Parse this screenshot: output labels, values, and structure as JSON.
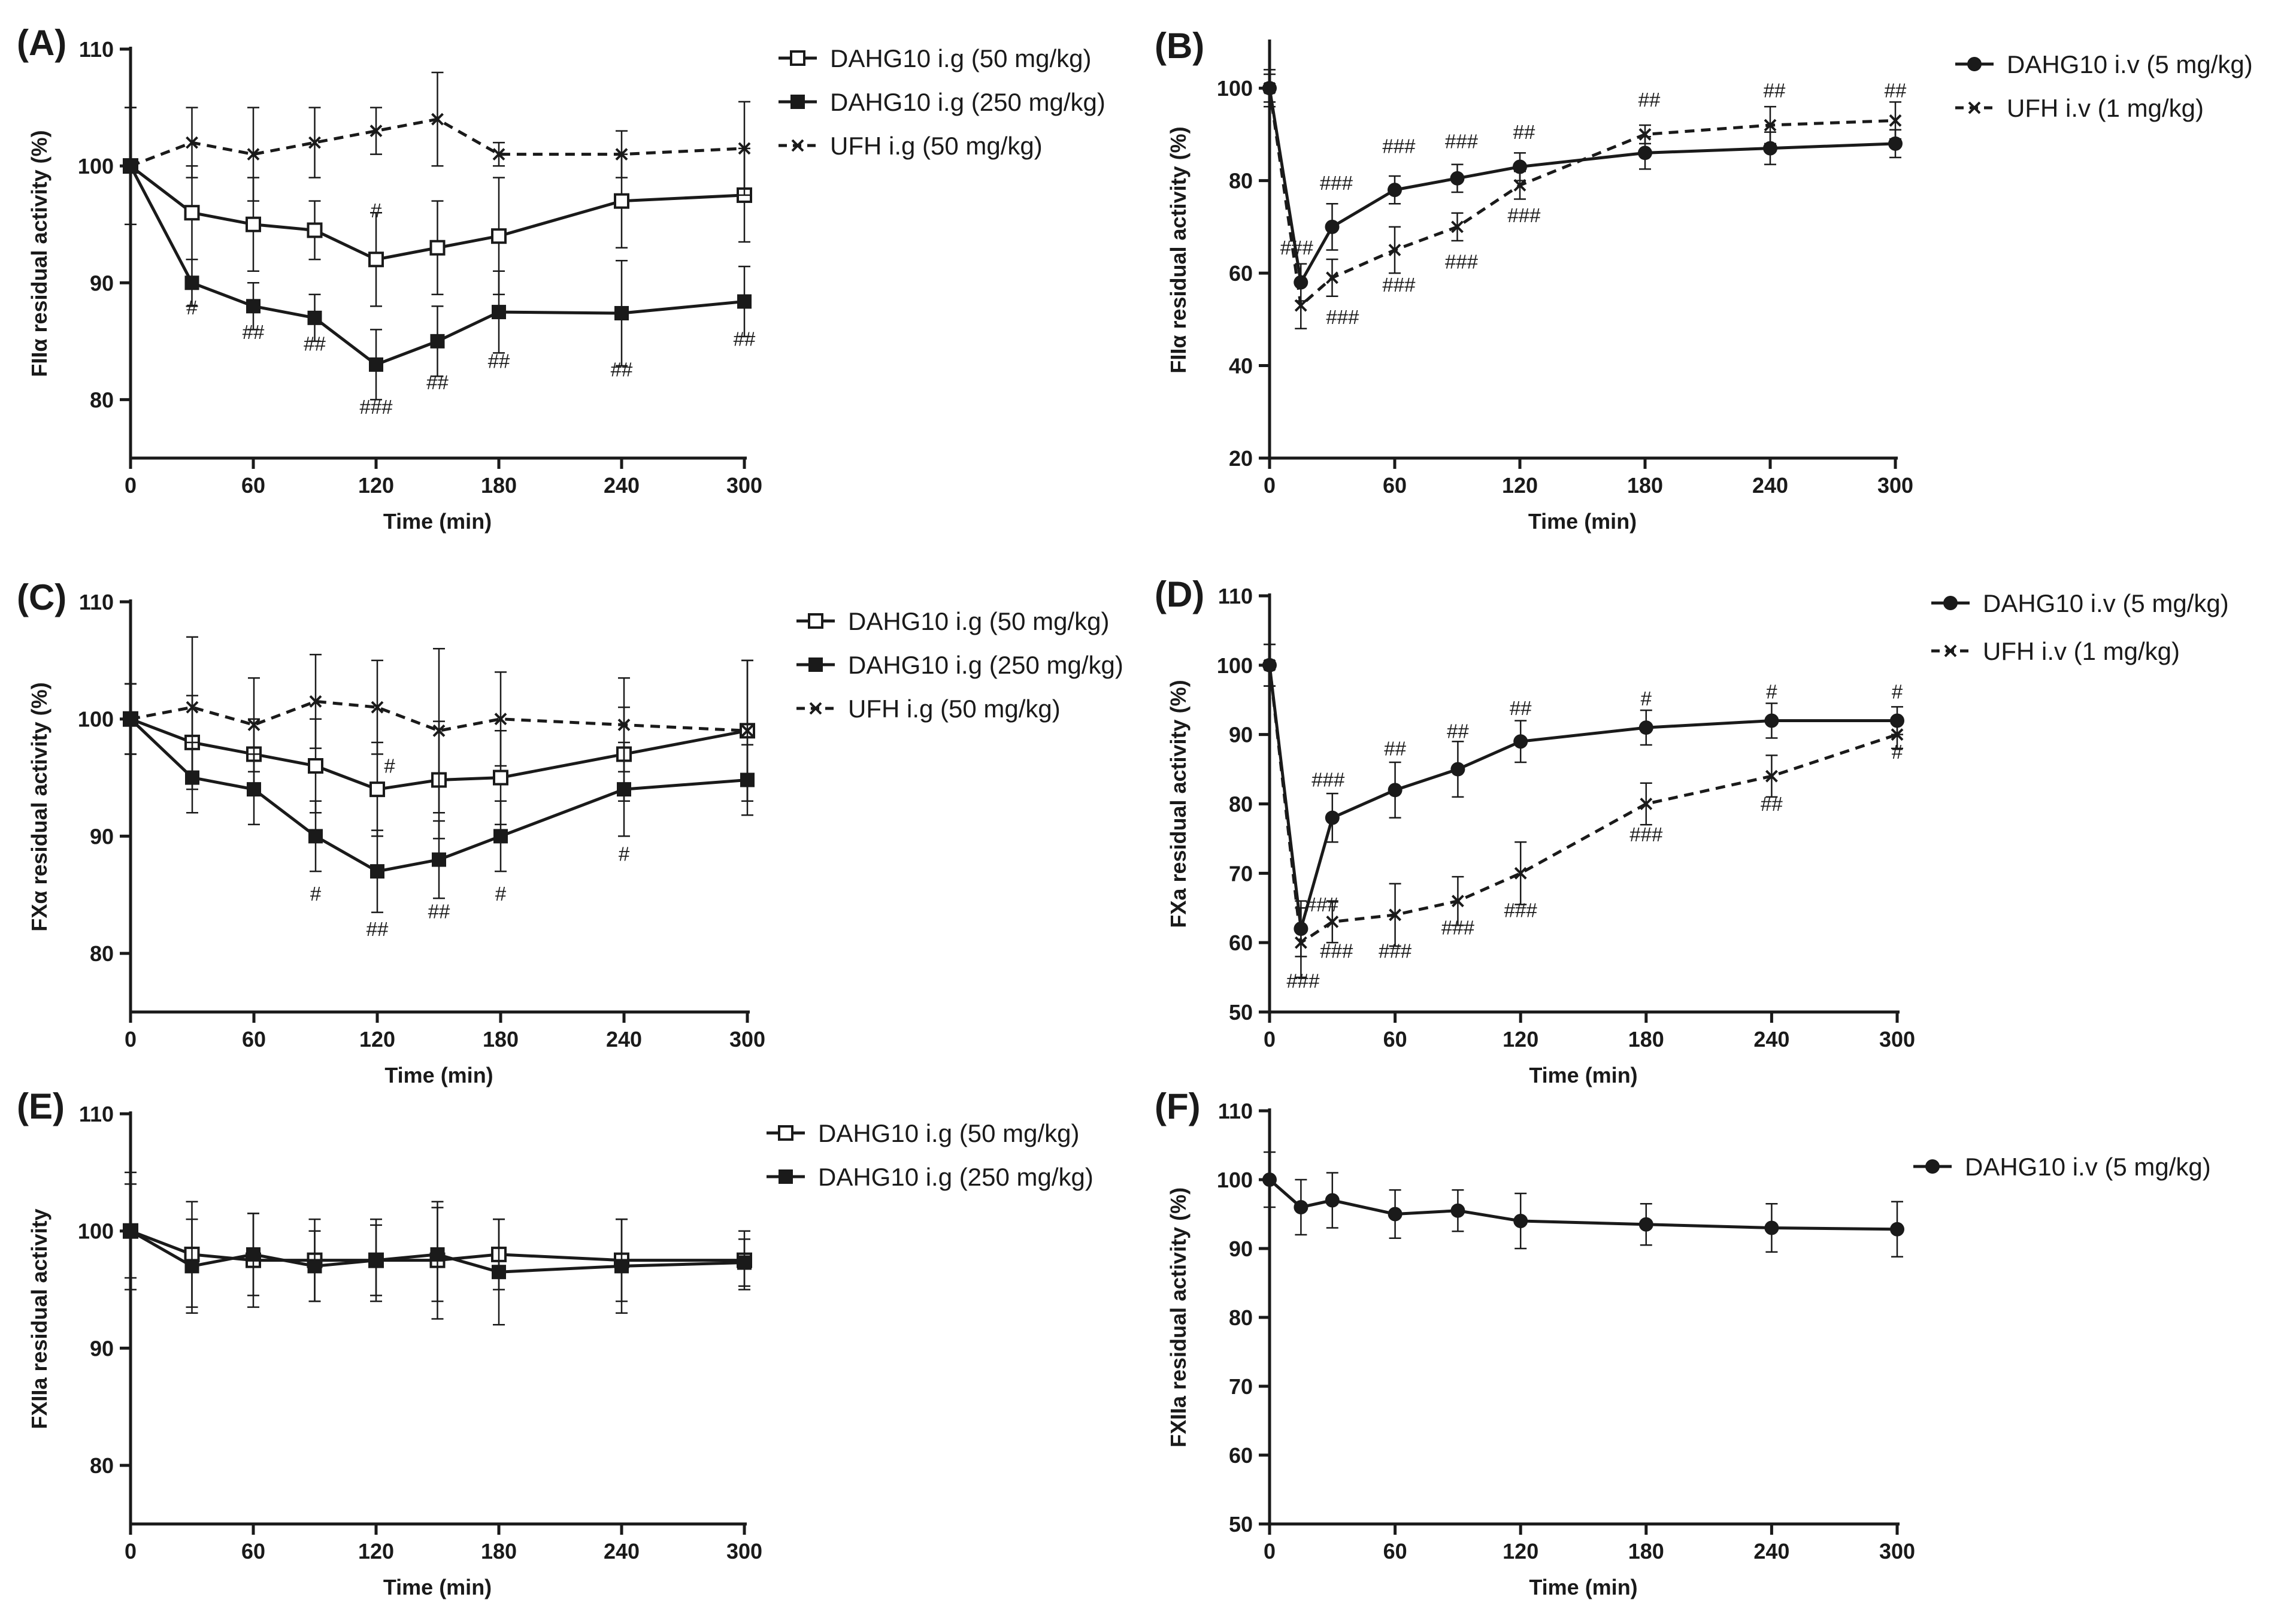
{
  "figure": {
    "panels": [
      "A",
      "B",
      "C",
      "D",
      "E",
      "F"
    ]
  },
  "chart_data": [
    {
      "type": "line",
      "panel_label": "(A)",
      "xlabel": "Time (min)",
      "ylabel": "FIIα residual activity (%)",
      "xlim": [
        0,
        300
      ],
      "ylim": [
        75,
        110
      ],
      "xticks": [
        0,
        60,
        120,
        180,
        240,
        300
      ],
      "yticks": [
        80,
        90,
        100,
        110
      ],
      "grid": false,
      "legend_position": "right",
      "series": [
        {
          "name": "DAHG10 i.g (50 mg/kg)",
          "marker": "open-square",
          "line": "solid",
          "x": [
            0,
            30,
            60,
            90,
            120,
            150,
            180,
            240,
            300
          ],
          "y": [
            100,
            96,
            95,
            94.5,
            92,
            93,
            94,
            97,
            97.5
          ],
          "err": [
            5,
            4,
            4,
            2.5,
            4,
            4,
            5,
            4,
            4
          ]
        },
        {
          "name": "DAHG10 i.g (250 mg/kg)",
          "marker": "filled-square",
          "line": "solid",
          "x": [
            0,
            30,
            60,
            90,
            120,
            150,
            180,
            240,
            300
          ],
          "y": [
            100,
            90,
            88,
            87,
            83,
            85,
            87.5,
            87.4,
            88.4
          ],
          "err": [
            5,
            2,
            2,
            2,
            3,
            3,
            3.5,
            4.5,
            3
          ]
        },
        {
          "name": "UFH i.g (50 mg/kg)",
          "marker": "x",
          "line": "dashed",
          "x": [
            0,
            30,
            60,
            90,
            120,
            150,
            180,
            240,
            300
          ],
          "y": [
            100,
            102,
            101,
            102,
            103,
            104,
            101,
            101,
            101.5
          ],
          "err": [
            5,
            3,
            4,
            3,
            2,
            4,
            1,
            2,
            4
          ]
        }
      ],
      "annotations": [
        {
          "text": "#",
          "x": 30,
          "y": 87.3
        },
        {
          "text": "##",
          "x": 60,
          "y": 85.2
        },
        {
          "text": "##",
          "x": 90,
          "y": 84.2
        },
        {
          "text": "#",
          "x": 120,
          "y": 95.6
        },
        {
          "text": "###",
          "x": 120,
          "y": 78.8
        },
        {
          "text": "##",
          "x": 150,
          "y": 80.9
        },
        {
          "text": "##",
          "x": 180,
          "y": 82.7
        },
        {
          "text": "##",
          "x": 240,
          "y": 82
        },
        {
          "text": "##",
          "x": 300,
          "y": 84.6
        }
      ]
    },
    {
      "type": "line",
      "panel_label": "(B)",
      "xlabel": "Time (min)",
      "ylabel": "FIIα residual activity (%)",
      "xlim": [
        0,
        300
      ],
      "ylim": [
        20,
        110
      ],
      "xticks": [
        0,
        60,
        120,
        180,
        240,
        300
      ],
      "yticks": [
        20,
        40,
        60,
        80,
        100
      ],
      "grid": false,
      "legend_position": "right",
      "series": [
        {
          "name": "DAHG10 i.v (5 mg/kg)",
          "marker": "filled-circle",
          "line": "solid",
          "x": [
            0,
            15,
            30,
            60,
            90,
            120,
            180,
            240,
            300
          ],
          "y": [
            100,
            58,
            70,
            78,
            80.5,
            83,
            86,
            87,
            88
          ],
          "err": [
            3,
            4,
            5,
            3,
            3,
            3,
            3.5,
            3.5,
            3
          ]
        },
        {
          "name": "UFH i.v (1 mg/kg)",
          "marker": "x",
          "line": "dashed",
          "x": [
            0,
            15,
            30,
            60,
            90,
            120,
            180,
            240,
            300
          ],
          "y": [
            100,
            53,
            59,
            65,
            70,
            79,
            90,
            92,
            93
          ],
          "err": [
            4,
            5,
            4,
            5,
            3,
            3,
            2,
            4,
            4
          ]
        }
      ],
      "annotations": [
        {
          "text": "###",
          "x": 13,
          "y": 64
        },
        {
          "text": "###",
          "x": 32,
          "y": 78
        },
        {
          "text": "###",
          "x": 35,
          "y": 49
        },
        {
          "text": "###",
          "x": 62,
          "y": 86
        },
        {
          "text": "###",
          "x": 62,
          "y": 56
        },
        {
          "text": "###",
          "x": 92,
          "y": 87
        },
        {
          "text": "###",
          "x": 92,
          "y": 61
        },
        {
          "text": "##",
          "x": 122,
          "y": 89
        },
        {
          "text": "###",
          "x": 122,
          "y": 71
        },
        {
          "text": "##",
          "x": 182,
          "y": 96
        },
        {
          "text": "##",
          "x": 242,
          "y": 98
        },
        {
          "text": "##",
          "x": 300,
          "y": 98
        }
      ]
    },
    {
      "type": "line",
      "panel_label": "(C)",
      "xlabel": "Time (min)",
      "ylabel": "FXα residual activity (%)",
      "xlim": [
        0,
        300
      ],
      "ylim": [
        75,
        110
      ],
      "xticks": [
        0,
        60,
        120,
        180,
        240,
        300
      ],
      "yticks": [
        80,
        90,
        100,
        110
      ],
      "grid": false,
      "legend_position": "right",
      "series": [
        {
          "name": "DAHG10 i.g (50 mg/kg)",
          "marker": "open-square",
          "line": "solid",
          "x": [
            0,
            30,
            60,
            90,
            120,
            150,
            180,
            240,
            300
          ],
          "y": [
            100,
            98,
            97,
            96,
            94,
            94.8,
            95,
            97,
            99
          ],
          "err": [
            3,
            4,
            3,
            4,
            4,
            5,
            4,
            4,
            6
          ]
        },
        {
          "name": "DAHG10 i.g (250 mg/kg)",
          "marker": "filled-square",
          "line": "solid",
          "x": [
            0,
            30,
            60,
            90,
            120,
            150,
            180,
            240,
            300
          ],
          "y": [
            100,
            95,
            94,
            90,
            87,
            88,
            90,
            94,
            94.8
          ],
          "err": [
            3,
            3,
            3,
            3,
            3.5,
            3.3,
            3,
            4,
            3
          ]
        },
        {
          "name": "UFH i.g (50 mg/kg)",
          "marker": "x",
          "line": "dashed",
          "x": [
            0,
            30,
            60,
            90,
            120,
            150,
            180,
            240,
            300
          ],
          "y": [
            100,
            101,
            99.5,
            101.5,
            101,
            99,
            100,
            99.5,
            99
          ],
          "err": [
            3,
            6,
            4,
            4,
            4,
            7,
            4,
            4,
            6
          ]
        }
      ],
      "annotations": [
        {
          "text": "#",
          "x": 90,
          "y": 84.5
        },
        {
          "text": "#",
          "x": 126,
          "y": 95.4
        },
        {
          "text": "##",
          "x": 120,
          "y": 81.5
        },
        {
          "text": "##",
          "x": 150,
          "y": 83
        },
        {
          "text": "#",
          "x": 180,
          "y": 84.5
        },
        {
          "text": "#",
          "x": 240,
          "y": 87.9
        }
      ]
    },
    {
      "type": "line",
      "panel_label": "(D)",
      "xlabel": "Time (min)",
      "ylabel": "FXa residual activity (%)",
      "xlim": [
        0,
        300
      ],
      "ylim": [
        50,
        110
      ],
      "xticks": [
        0,
        60,
        120,
        180,
        240,
        300
      ],
      "yticks": [
        50,
        60,
        70,
        80,
        90,
        100,
        110
      ],
      "grid": false,
      "legend_position": "right",
      "series": [
        {
          "name": "DAHG10 i.v (5 mg/kg)",
          "marker": "filled-circle",
          "line": "solid",
          "x": [
            0,
            15,
            30,
            60,
            90,
            120,
            180,
            240,
            300
          ],
          "y": [
            100,
            62,
            78,
            82,
            85,
            89,
            91,
            92,
            92
          ],
          "err": [
            3,
            4,
            3.5,
            4,
            4,
            3,
            2.5,
            2.5,
            2
          ]
        },
        {
          "name": "UFH i.v (1 mg/kg)",
          "marker": "x",
          "line": "dashed",
          "x": [
            0,
            15,
            30,
            60,
            90,
            120,
            180,
            240,
            300
          ],
          "y": [
            100,
            60,
            63,
            64,
            66,
            70,
            80,
            84,
            90
          ],
          "err": [
            3,
            5,
            3,
            4.5,
            3.5,
            4.5,
            3,
            3,
            2
          ]
        }
      ],
      "annotations": [
        {
          "text": "###",
          "x": 25,
          "y": 64.5
        },
        {
          "text": "###",
          "x": 16,
          "y": 53.5
        },
        {
          "text": "###",
          "x": 28,
          "y": 82.5
        },
        {
          "text": "###",
          "x": 32,
          "y": 57.8
        },
        {
          "text": "##",
          "x": 60,
          "y": 87
        },
        {
          "text": "###",
          "x": 60,
          "y": 57.8
        },
        {
          "text": "##",
          "x": 90,
          "y": 89.5
        },
        {
          "text": "###",
          "x": 90,
          "y": 61.2
        },
        {
          "text": "##",
          "x": 120,
          "y": 92.8
        },
        {
          "text": "###",
          "x": 120,
          "y": 63.7
        },
        {
          "text": "#",
          "x": 180,
          "y": 94.2
        },
        {
          "text": "###",
          "x": 180,
          "y": 74.6
        },
        {
          "text": "#",
          "x": 240,
          "y": 95.2
        },
        {
          "text": "##",
          "x": 240,
          "y": 79
        },
        {
          "text": "#",
          "x": 300,
          "y": 95.2
        },
        {
          "text": "#",
          "x": 300,
          "y": 86.5
        }
      ]
    },
    {
      "type": "line",
      "panel_label": "(E)",
      "xlabel": "Time (min)",
      "ylabel": "FXIIa residual activity",
      "xlim": [
        0,
        300
      ],
      "ylim": [
        75,
        110
      ],
      "xticks": [
        0,
        60,
        120,
        180,
        240,
        300
      ],
      "yticks": [
        80,
        90,
        100,
        110
      ],
      "grid": false,
      "legend_position": "right",
      "series": [
        {
          "name": "DAHG10 i.g (50 mg/kg)",
          "marker": "open-square",
          "line": "solid",
          "x": [
            0,
            30,
            60,
            90,
            120,
            150,
            180,
            240,
            300
          ],
          "y": [
            100,
            98,
            97.5,
            97.5,
            97.5,
            97.5,
            98,
            97.5,
            97.5
          ],
          "err": [
            5,
            4.5,
            4,
            3.5,
            3,
            5,
            3,
            3.5,
            2.5
          ]
        },
        {
          "name": "DAHG10 i.g (250 mg/kg)",
          "marker": "filled-square",
          "line": "solid",
          "x": [
            0,
            30,
            60,
            90,
            120,
            150,
            180,
            240,
            300
          ],
          "y": [
            100,
            97,
            98,
            97,
            97.5,
            98,
            96.5,
            97,
            97.3
          ],
          "err": [
            4,
            4,
            3.5,
            3,
            3.5,
            4,
            4.5,
            4,
            2
          ]
        }
      ],
      "annotations": []
    },
    {
      "type": "line",
      "panel_label": "(F)",
      "xlabel": "Time (min)",
      "ylabel": "FXIIa residual activity (%)",
      "xlim": [
        0,
        300
      ],
      "ylim": [
        50,
        110
      ],
      "xticks": [
        0,
        60,
        120,
        180,
        240,
        300
      ],
      "yticks": [
        50,
        60,
        70,
        80,
        90,
        100,
        110
      ],
      "grid": false,
      "legend_position": "right",
      "series": [
        {
          "name": "DAHG10 i.v (5 mg/kg)",
          "marker": "filled-circle",
          "line": "solid",
          "x": [
            0,
            15,
            30,
            60,
            90,
            120,
            180,
            240,
            300
          ],
          "y": [
            100,
            96,
            97,
            95,
            95.5,
            94,
            93.5,
            93,
            92.8
          ],
          "err": [
            4,
            4,
            4,
            3.5,
            3,
            4,
            3,
            3.5,
            4
          ]
        }
      ],
      "annotations": []
    }
  ]
}
